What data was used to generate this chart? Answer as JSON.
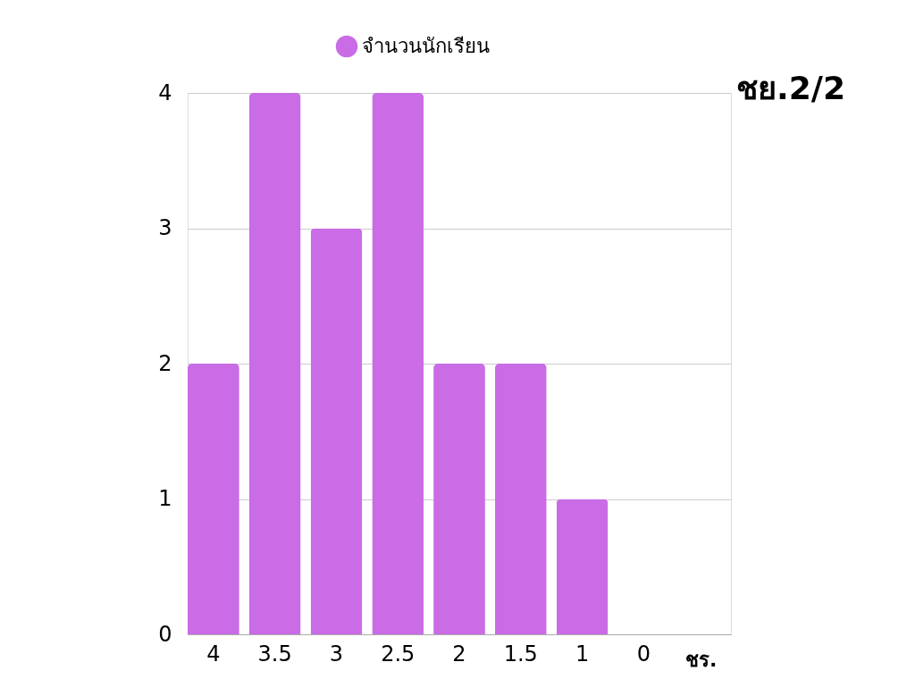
{
  "chart_data": {
    "type": "bar",
    "title": "ชย.2/2",
    "xlabel": "ชร.",
    "categories": [
      "4",
      "3.5",
      "3",
      "2.5",
      "2",
      "1.5",
      "1",
      "0"
    ],
    "series": [
      {
        "name": "จำนวนนักเรียน",
        "color": "#c96ce6",
        "values": [
          2,
          4,
          3,
          4,
          2,
          2,
          1,
          0
        ]
      }
    ],
    "ylim": [
      0,
      4
    ],
    "yticks": [
      0,
      1,
      2,
      3,
      4
    ],
    "grid": "y",
    "legend": "top"
  }
}
